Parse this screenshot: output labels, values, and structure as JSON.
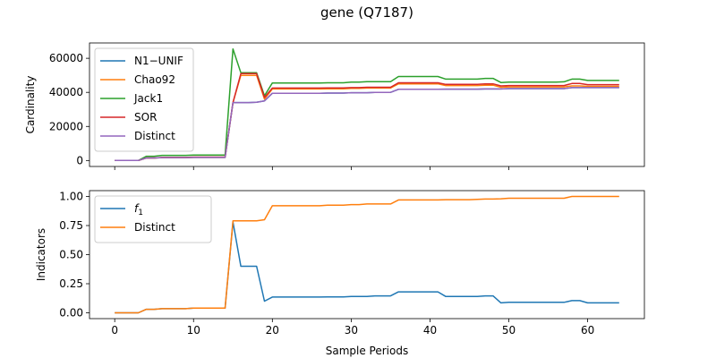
{
  "title": "gene (Q7187)",
  "chart_data": [
    {
      "type": "line",
      "ylabel": "Cardinality",
      "xlim": [
        -3.2,
        67.2
      ],
      "ylim": [
        -3500,
        69000
      ],
      "xticks": [
        0,
        10,
        20,
        30,
        40,
        50,
        60
      ],
      "yticks": [
        0,
        20000,
        40000,
        60000
      ],
      "yticklabels": [
        "0",
        "20000",
        "40000",
        "60000"
      ],
      "legend_position": "top-left",
      "x": [
        0,
        1,
        2,
        3,
        4,
        5,
        6,
        7,
        8,
        9,
        10,
        11,
        12,
        13,
        14,
        15,
        16,
        17,
        18,
        19,
        20,
        21,
        22,
        23,
        24,
        25,
        26,
        27,
        28,
        29,
        30,
        31,
        32,
        33,
        34,
        35,
        36,
        37,
        38,
        39,
        40,
        41,
        42,
        43,
        44,
        45,
        46,
        47,
        48,
        49,
        50,
        51,
        52,
        53,
        54,
        55,
        56,
        57,
        58,
        59,
        60,
        61,
        62,
        63,
        64
      ],
      "series": [
        {
          "name": "N1−UNIF",
          "color": "#1f77b4",
          "values": [
            0,
            0,
            0,
            0,
            1500,
            1500,
            1700,
            1700,
            1700,
            1700,
            1800,
            1800,
            1800,
            1800,
            1800,
            34000,
            34000,
            34000,
            34200,
            35000,
            39500,
            39500,
            39500,
            39500,
            39500,
            39500,
            39500,
            39600,
            39600,
            39600,
            39800,
            39800,
            39800,
            40000,
            40000,
            40000,
            41800,
            41800,
            41800,
            41800,
            41800,
            41800,
            41900,
            41900,
            41900,
            41900,
            41900,
            42000,
            42000,
            42000,
            42200,
            42200,
            42200,
            42200,
            42200,
            42200,
            42200,
            42200,
            42800,
            42800,
            42800,
            42800,
            42800,
            42800,
            42800
          ]
        },
        {
          "name": "Chao92",
          "color": "#ff7f0e",
          "values": [
            0,
            0,
            0,
            0,
            1500,
            1500,
            1700,
            1700,
            1700,
            1700,
            1800,
            1800,
            1800,
            1800,
            1800,
            34000,
            50000,
            50000,
            50000,
            36000,
            42000,
            42000,
            42000,
            42000,
            42000,
            42000,
            42000,
            42100,
            42100,
            42100,
            42300,
            42300,
            42500,
            42500,
            42500,
            42500,
            45000,
            45000,
            45000,
            45000,
            45000,
            45000,
            44000,
            44000,
            44000,
            44000,
            44000,
            44200,
            44200,
            43000,
            43200,
            43200,
            43200,
            43200,
            43200,
            43200,
            43200,
            43200,
            43800,
            43800,
            43500,
            43500,
            43500,
            43500,
            43500
          ]
        },
        {
          "name": "Jack1",
          "color": "#2ca02c",
          "values": [
            0,
            0,
            0,
            0,
            2500,
            2500,
            3000,
            3000,
            3000,
            3000,
            3200,
            3200,
            3200,
            3200,
            3200,
            65500,
            51500,
            51500,
            51500,
            38000,
            45500,
            45500,
            45500,
            45500,
            45500,
            45500,
            45500,
            45600,
            45600,
            45600,
            46000,
            46000,
            46300,
            46300,
            46300,
            46300,
            49300,
            49300,
            49300,
            49300,
            49300,
            49300,
            47800,
            47800,
            47800,
            47800,
            47800,
            48200,
            48200,
            45800,
            46000,
            46000,
            46000,
            46000,
            46000,
            46000,
            46000,
            46200,
            47800,
            47800,
            47000,
            47000,
            47000,
            47000,
            47000
          ]
        },
        {
          "name": "SOR",
          "color": "#d62728",
          "values": [
            0,
            0,
            0,
            0,
            1500,
            1500,
            1800,
            1800,
            1800,
            1800,
            2000,
            2000,
            2000,
            2000,
            2000,
            34000,
            51000,
            51000,
            51000,
            37000,
            42500,
            42500,
            42500,
            42500,
            42500,
            42500,
            42500,
            42600,
            42600,
            42600,
            42800,
            42800,
            43000,
            43000,
            43000,
            43000,
            45600,
            45600,
            45600,
            45600,
            45600,
            45600,
            44700,
            44700,
            44700,
            44700,
            44700,
            45000,
            45000,
            43800,
            44000,
            44000,
            44000,
            44000,
            44000,
            44000,
            44000,
            44000,
            45200,
            45200,
            44500,
            44500,
            44500,
            44500,
            44500
          ]
        },
        {
          "name": "Distinct",
          "color": "#9467bd",
          "values": [
            0,
            0,
            0,
            0,
            1500,
            1500,
            1700,
            1700,
            1700,
            1700,
            1800,
            1800,
            1800,
            1800,
            1800,
            34000,
            34000,
            34000,
            34200,
            35000,
            39500,
            39500,
            39500,
            39500,
            39500,
            39500,
            39500,
            39600,
            39600,
            39600,
            39800,
            39800,
            39800,
            40000,
            40000,
            40000,
            41800,
            41800,
            41800,
            41800,
            41800,
            41800,
            41900,
            41900,
            41900,
            41900,
            41900,
            42000,
            42000,
            42000,
            42200,
            42200,
            42200,
            42200,
            42200,
            42200,
            42200,
            42200,
            42800,
            42800,
            42800,
            42800,
            42800,
            42800,
            42800
          ]
        }
      ]
    },
    {
      "type": "line",
      "xlabel": "Sample Periods",
      "ylabel": "Indicators",
      "xlim": [
        -3.2,
        67.2
      ],
      "ylim": [
        -0.05,
        1.05
      ],
      "xticks": [
        0,
        10,
        20,
        30,
        40,
        50,
        60
      ],
      "xticklabels": [
        "0",
        "10",
        "20",
        "30",
        "40",
        "50",
        "60"
      ],
      "yticks": [
        0,
        0.25,
        0.5,
        0.75,
        1.0
      ],
      "yticklabels": [
        "0.00",
        "0.25",
        "0.50",
        "0.75",
        "1.00"
      ],
      "legend_position": "top-left",
      "x": [
        0,
        1,
        2,
        3,
        4,
        5,
        6,
        7,
        8,
        9,
        10,
        11,
        12,
        13,
        14,
        15,
        16,
        17,
        18,
        19,
        20,
        21,
        22,
        23,
        24,
        25,
        26,
        27,
        28,
        29,
        30,
        31,
        32,
        33,
        34,
        35,
        36,
        37,
        38,
        39,
        40,
        41,
        42,
        43,
        44,
        45,
        46,
        47,
        48,
        49,
        50,
        51,
        52,
        53,
        54,
        55,
        56,
        57,
        58,
        59,
        60,
        61,
        62,
        63,
        64
      ],
      "series": [
        {
          "name": "f1",
          "color": "#1f77b4",
          "values": [
            0,
            0,
            0,
            0,
            0.03,
            0.03,
            0.035,
            0.035,
            0.035,
            0.035,
            0.04,
            0.04,
            0.04,
            0.04,
            0.04,
            0.78,
            0.4,
            0.4,
            0.4,
            0.1,
            0.135,
            0.135,
            0.135,
            0.135,
            0.135,
            0.135,
            0.135,
            0.137,
            0.137,
            0.137,
            0.14,
            0.14,
            0.14,
            0.145,
            0.145,
            0.145,
            0.18,
            0.18,
            0.18,
            0.18,
            0.18,
            0.18,
            0.14,
            0.14,
            0.14,
            0.14,
            0.14,
            0.145,
            0.145,
            0.085,
            0.09,
            0.09,
            0.09,
            0.09,
            0.09,
            0.09,
            0.09,
            0.09,
            0.105,
            0.105,
            0.085,
            0.085,
            0.085,
            0.085,
            0.085
          ]
        },
        {
          "name": "Distinct",
          "color": "#ff7f0e",
          "values": [
            0,
            0,
            0,
            0,
            0.03,
            0.03,
            0.035,
            0.035,
            0.035,
            0.035,
            0.04,
            0.04,
            0.04,
            0.04,
            0.04,
            0.79,
            0.79,
            0.79,
            0.79,
            0.8,
            0.92,
            0.92,
            0.92,
            0.92,
            0.92,
            0.92,
            0.92,
            0.925,
            0.925,
            0.925,
            0.93,
            0.93,
            0.935,
            0.935,
            0.935,
            0.935,
            0.97,
            0.97,
            0.97,
            0.97,
            0.97,
            0.97,
            0.972,
            0.972,
            0.972,
            0.972,
            0.975,
            0.978,
            0.978,
            0.98,
            0.985,
            0.985,
            0.985,
            0.985,
            0.985,
            0.985,
            0.985,
            0.985,
            1.0,
            1.0,
            1.0,
            1.0,
            1.0,
            1.0,
            1.0
          ]
        }
      ]
    }
  ]
}
